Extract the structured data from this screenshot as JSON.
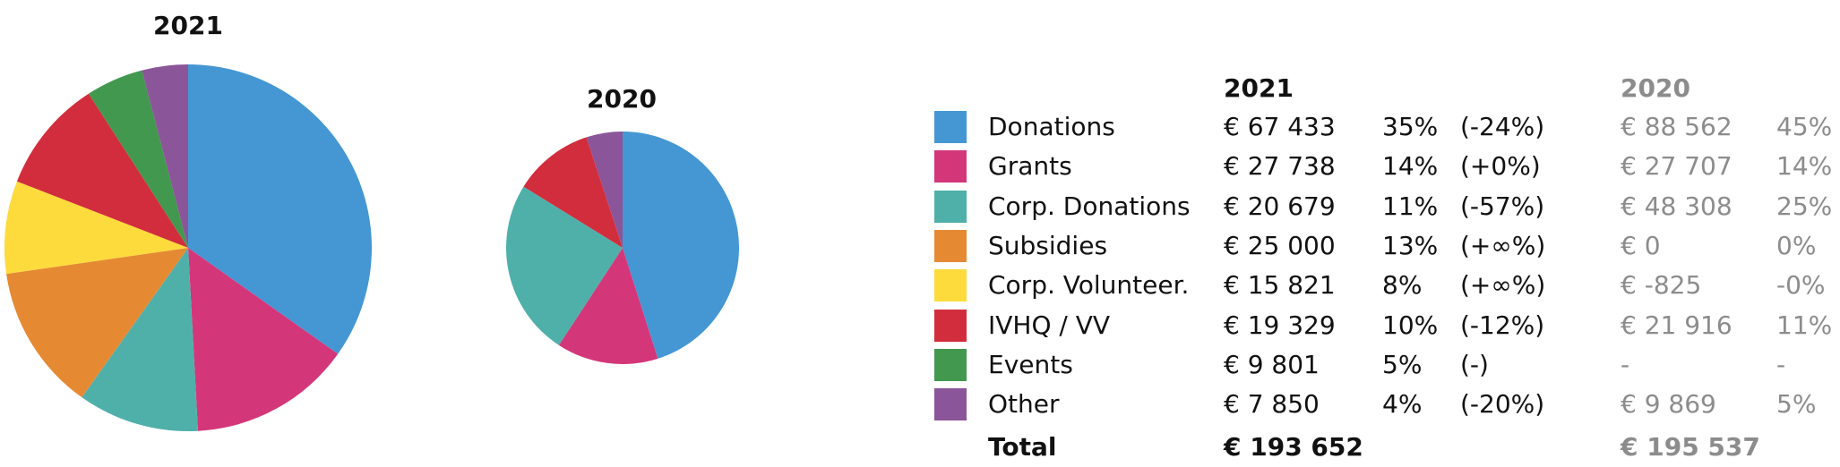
{
  "chart_data": [
    {
      "type": "pie",
      "title": "2021",
      "categories": [
        "Donations",
        "Grants",
        "Corp. Donations",
        "Subsidies",
        "Corp. Volunteer.",
        "IVHQ / VV",
        "Events",
        "Other"
      ],
      "values": [
        67433,
        27738,
        20679,
        25000,
        15821,
        19329,
        9801,
        7850
      ],
      "colors": [
        "#4597d3",
        "#d4367a",
        "#4fb0aa",
        "#e58a33",
        "#fedb3c",
        "#d22d3c",
        "#42984f",
        "#8b5599"
      ]
    },
    {
      "type": "pie",
      "title": "2020",
      "categories": [
        "Donations",
        "Grants",
        "Corp. Donations",
        "IVHQ / VV",
        "Other"
      ],
      "values": [
        88562,
        27707,
        48308,
        21916,
        9869
      ],
      "colors": [
        "#4597d3",
        "#d4367a",
        "#4fb0aa",
        "#d22d3c",
        "#8b5599"
      ]
    },
    {
      "type": "table",
      "headers": {
        "y2021": "2021",
        "y2020": "2020"
      },
      "rows": [
        {
          "name": "Donations",
          "color": "#4597d3",
          "v2021": "€ 67 433",
          "p2021": "35%",
          "change": "(-24%)",
          "v2020": "€ 88 562",
          "p2020": "45%"
        },
        {
          "name": "Grants",
          "color": "#d4367a",
          "v2021": "€ 27 738",
          "p2021": "14%",
          "change": "(+0%)",
          "v2020": "€ 27 707",
          "p2020": "14%"
        },
        {
          "name": "Corp. Donations",
          "color": "#4fb0aa",
          "v2021": "€ 20 679",
          "p2021": "11%",
          "change": "(-57%)",
          "v2020": "€ 48 308",
          "p2020": "25%"
        },
        {
          "name": "Subsidies",
          "color": "#e58a33",
          "v2021": "€ 25 000",
          "p2021": "13%",
          "change": "(+∞%)",
          "v2020": "€ 0",
          "p2020": "0%"
        },
        {
          "name": "Corp. Volunteer.",
          "color": "#fedb3c",
          "v2021": "€ 15 821",
          "p2021": "8%",
          "change": "(+∞%)",
          "v2020": "€ -825",
          "p2020": "-0%"
        },
        {
          "name": "IVHQ / VV",
          "color": "#d22d3c",
          "v2021": "€ 19 329",
          "p2021": "10%",
          "change": "(-12%)",
          "v2020": "€ 21 916",
          "p2020": "11%"
        },
        {
          "name": "Events",
          "color": "#42984f",
          "v2021": "€ 9 801",
          "p2021": "5%",
          "change": "(-)",
          "v2020": "-",
          "p2020": "-"
        },
        {
          "name": "Other",
          "color": "#8b5599",
          "v2021": "€ 7 850",
          "p2021": "4%",
          "change": "(-20%)",
          "v2020": "€ 9 869",
          "p2020": "5%"
        }
      ],
      "total": {
        "name": "Total",
        "v2021": "€ 193 652",
        "v2020": "€ 195 537"
      }
    }
  ]
}
